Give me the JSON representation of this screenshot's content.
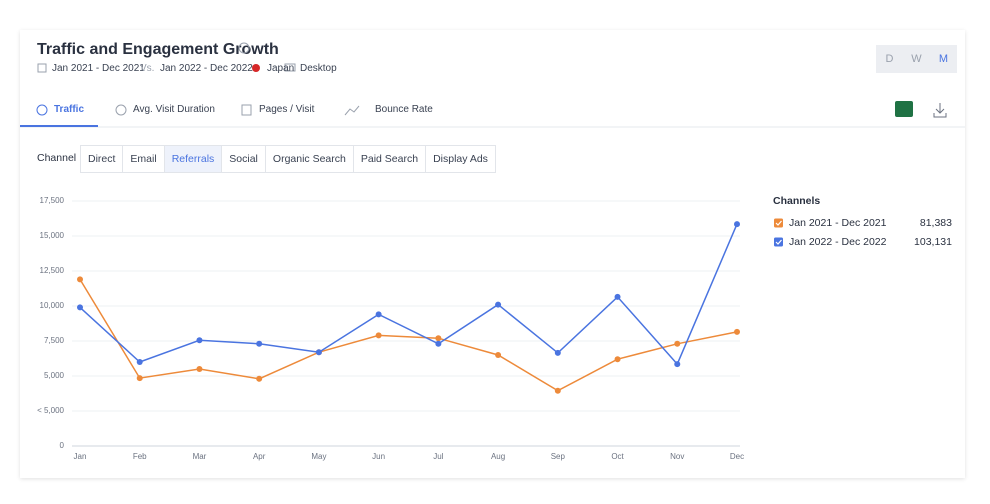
{
  "header": {
    "title": "Traffic and Engagement Growth",
    "period": "Jan 2021 - Dec 2021",
    "vs": "Vs.",
    "compare_period": "Jan 2022 - Dec 2022",
    "country": "Japan",
    "device": "Desktop"
  },
  "granularity": [
    "D",
    "W",
    "M"
  ],
  "metric_tabs": [
    "Traffic",
    "Avg. Visit Duration",
    "Pages / Visit",
    "Bounce Rate"
  ],
  "channel_label": "Channel",
  "channel_tabs": [
    "Direct",
    "Email",
    "Referrals",
    "Social",
    "Organic Search",
    "Paid Search",
    "Display Ads"
  ],
  "chart_data": {
    "type": "line",
    "legend_title": "Channels",
    "categories": [
      "Jan",
      "Feb",
      "Mar",
      "Apr",
      "May",
      "Jun",
      "Jul",
      "Aug",
      "Sep",
      "Oct",
      "Nov",
      "Dec"
    ],
    "series": [
      {
        "name": "Jan 2021 - Dec 2021",
        "color": "#ed8a3a",
        "total": "81,383",
        "values": [
          11900,
          4850,
          5500,
          4800,
          6700,
          7900,
          7700,
          6500,
          3950,
          6200,
          7300,
          8150
        ]
      },
      {
        "name": "Jan 2022 - Dec 2022",
        "color": "#4a74e0",
        "total": "103,131",
        "values": [
          9900,
          6000,
          7550,
          7300,
          6700,
          9400,
          7300,
          10100,
          6650,
          10650,
          5850,
          15850
        ]
      }
    ],
    "ylim": [
      0,
      17500
    ],
    "yticks": [
      0,
      {
        "value": 2500,
        "label": "< 5,000"
      },
      {
        "value": 5000,
        "label": "5,000"
      },
      {
        "value": 7500,
        "label": "7,500"
      },
      {
        "value": 10000,
        "label": "10,000"
      },
      {
        "value": 12500,
        "label": "12,500"
      },
      {
        "value": 15000,
        "label": "15,000"
      },
      {
        "value": 17500,
        "label": "17,500"
      }
    ],
    "grid": true
  }
}
